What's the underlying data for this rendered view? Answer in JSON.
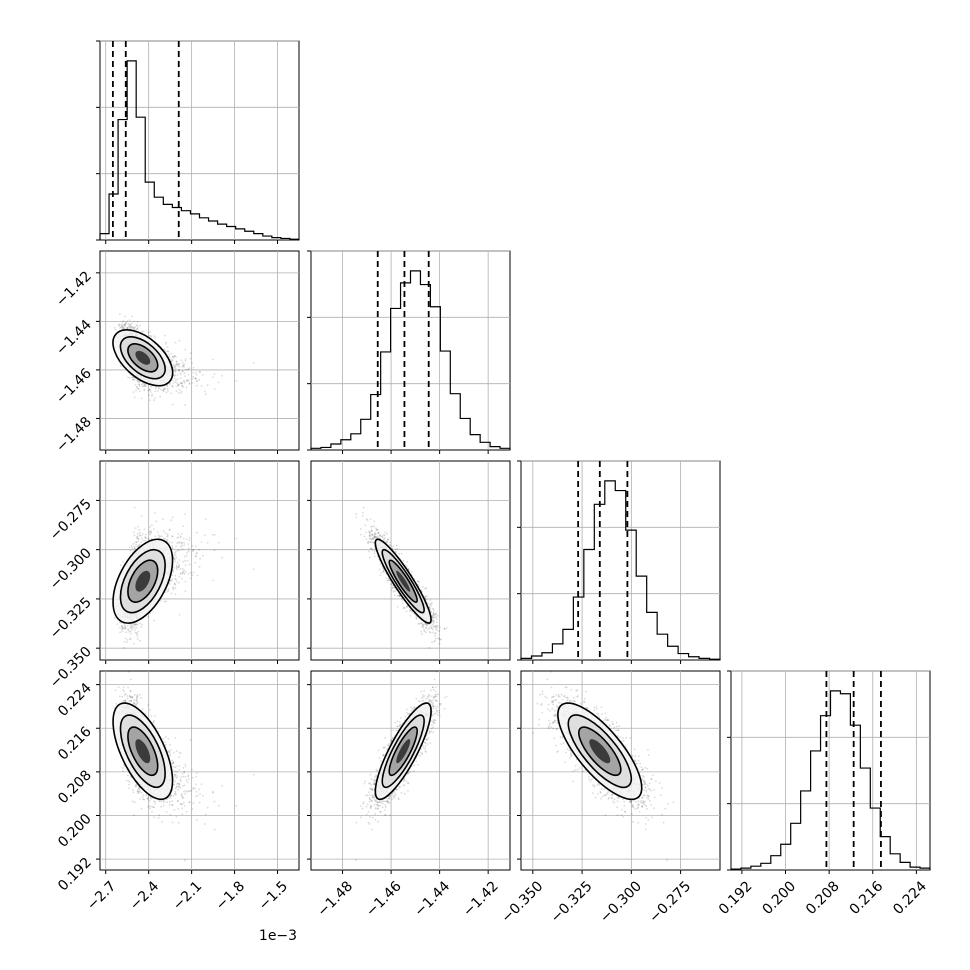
{
  "chart_data": {
    "type": "corner",
    "grid": true,
    "colors": {
      "line": "#000000",
      "grid": "#b0b0b0",
      "points": "#000000"
    },
    "x_offset_label": "1e−3",
    "params": [
      {
        "range": [
          -2.74,
          -1.35
        ],
        "ticks": [
          -2.7,
          -2.4,
          -2.1,
          -1.8,
          -1.5
        ],
        "tick_labels": [
          "−2.7",
          "−2.4",
          "−2.1",
          "−1.8",
          "−1.5"
        ],
        "center": [
          -2.63,
          -1.47
        ],
        "spread": [
          0.22,
          0.0085
        ],
        "skew": 0.9,
        "quantiles": [
          -2.65,
          -2.56,
          -2.19
        ],
        "hist": [
          8,
          58,
          152,
          226,
          155,
          73,
          54,
          45,
          41,
          37,
          33,
          28,
          24,
          20,
          17,
          14,
          11,
          8,
          5,
          3,
          2,
          1
        ]
      },
      {
        "range": [
          -1.493,
          -1.411
        ],
        "ticks": [
          -1.48,
          -1.46,
          -1.44,
          -1.42
        ],
        "tick_labels": [
          "−1.48",
          "−1.46",
          "−1.44",
          "−1.42"
        ],
        "center": [
          -1.455
        ],
        "spread": [
          0.0085
        ],
        "quantiles": [
          -1.4655,
          -1.4545,
          -1.4445
        ],
        "hist": [
          2,
          3,
          7,
          12,
          19,
          36,
          65,
          115,
          166,
          196,
          210,
          194,
          168,
          116,
          66,
          37,
          18,
          9,
          4,
          2
        ]
      },
      {
        "range": [
          -0.356,
          -0.255
        ],
        "ticks": [
          -0.35,
          -0.325,
          -0.3,
          -0.275
        ],
        "tick_labels": [
          "−0.350",
          "−0.325",
          "−0.300",
          "−0.275"
        ],
        "center": [
          -0.318
        ],
        "spread": [
          0.012
        ],
        "quantiles": [
          -0.327,
          -0.316,
          -0.302
        ],
        "hist": [
          2,
          5,
          9,
          20,
          38,
          78,
          137,
          193,
          222,
          210,
          161,
          104,
          59,
          32,
          17,
          8,
          4,
          2,
          1
        ]
      },
      {
        "range": [
          0.19,
          0.2265
        ],
        "ticks": [
          0.192,
          0.2,
          0.208,
          0.216,
          0.224
        ],
        "tick_labels": [
          "0.192",
          "0.200",
          "0.208",
          "0.216",
          "0.224"
        ],
        "center": [
          0.2125
        ],
        "spread": [
          0.005
        ],
        "quantiles": [
          0.2075,
          0.2125,
          0.2175
        ],
        "hist": [
          1,
          2,
          4,
          7,
          15,
          27,
          49,
          83,
          125,
          162,
          188,
          185,
          152,
          107,
          65,
          35,
          17,
          8,
          3,
          2
        ]
      }
    ]
  }
}
